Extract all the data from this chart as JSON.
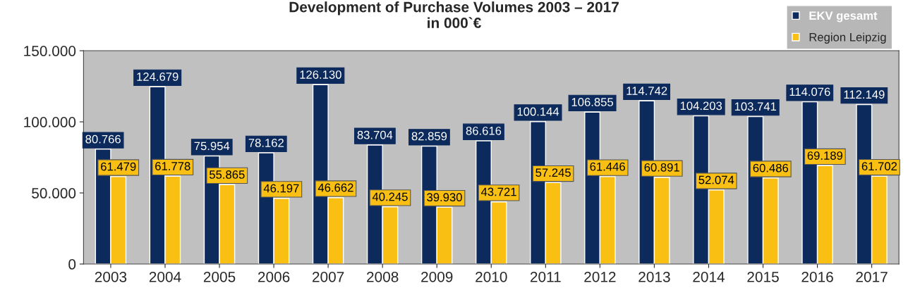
{
  "chart_data": {
    "type": "bar",
    "title": "Development of Purchase Volumes 2003 – 2017\nin 000`€",
    "categories": [
      "2003",
      "2004",
      "2005",
      "2006",
      "2007",
      "2008",
      "2009",
      "2010",
      "2011",
      "2012",
      "2013",
      "2014",
      "2015",
      "2016",
      "2017"
    ],
    "series": [
      {
        "name": "EKV gesamt",
        "color": "#0d2a5c",
        "values": [
          80766,
          124679,
          75954,
          78162,
          126130,
          83704,
          82859,
          86616,
          100144,
          106855,
          114742,
          104203,
          103741,
          114076,
          112149
        ],
        "value_labels": [
          "80.766",
          "124.679",
          "75.954",
          "78.162",
          "126.130",
          "83.704",
          "82.859",
          "86.616",
          "100.144",
          "106.855",
          "114.742",
          "104.203",
          "103.741",
          "114.076",
          "112.149"
        ]
      },
      {
        "name": "Region Leipzig",
        "color": "#f9c013",
        "values": [
          61479,
          61778,
          55865,
          46197,
          46662,
          40245,
          39930,
          43721,
          57245,
          61446,
          60891,
          52074,
          60486,
          69189,
          61702
        ],
        "value_labels": [
          "61.479",
          "61.778",
          "55.865",
          "46.197",
          "46.662",
          "40.245",
          "39.930",
          "43.721",
          "57.245",
          "61.446",
          "60.891",
          "52.074",
          "60.486",
          "69.189",
          "61.702"
        ]
      }
    ],
    "ylim": [
      0,
      150000
    ],
    "yticks": [
      {
        "value": 0,
        "label": "0"
      },
      {
        "value": 50000,
        "label": "50.000"
      },
      {
        "value": 100000,
        "label": "100.000"
      },
      {
        "value": 150000,
        "label": "150.000"
      }
    ],
    "grid": false,
    "legend": "top right"
  }
}
